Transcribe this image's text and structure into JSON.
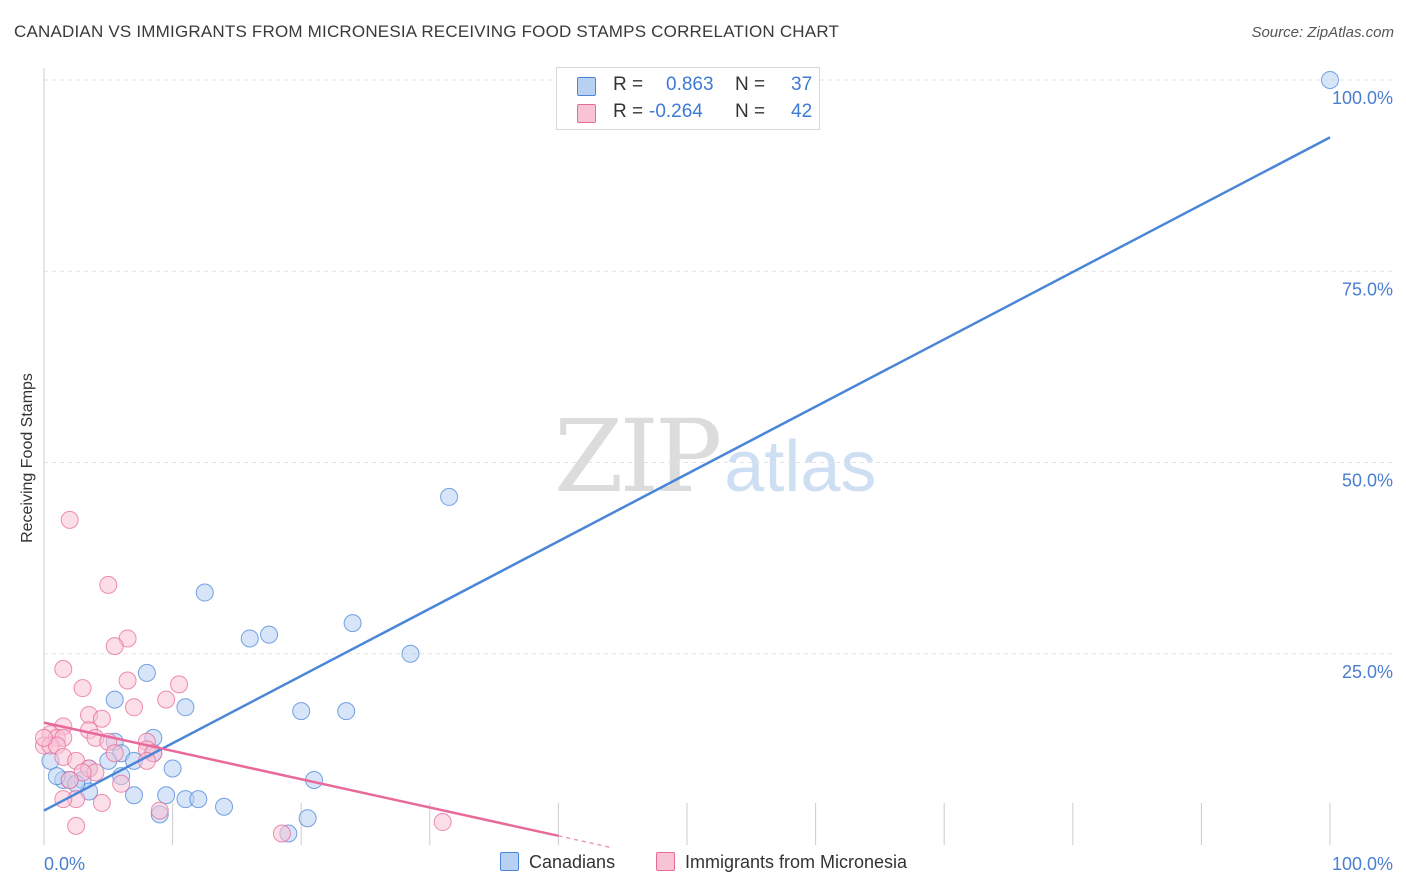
{
  "chart_data": {
    "type": "scatter",
    "title": "CANADIAN VS IMMIGRANTS FROM MICRONESIA RECEIVING FOOD STAMPS CORRELATION CHART",
    "source": "Source: ZipAtlas.com",
    "ylabel": "Receiving Food Stamps",
    "xlabel": "",
    "xlim": [
      0,
      100
    ],
    "ylim": [
      0,
      100
    ],
    "x_tick_labels": {
      "min": "0.0%",
      "max": "100.0%"
    },
    "y_ticks": [
      {
        "value": 25,
        "label": "25.0%"
      },
      {
        "value": 50,
        "label": "50.0%"
      },
      {
        "value": 75,
        "label": "75.0%"
      },
      {
        "value": 100,
        "label": "100.0%"
      }
    ],
    "grid": true,
    "legend_position": "top-center",
    "series": [
      {
        "name": "Canadians",
        "color": "#4a86d8",
        "fill": "#b8d0f2",
        "stats": {
          "r_label": "R =",
          "r": "0.863",
          "n_label": "N =",
          "n": "37"
        },
        "trend": {
          "x": [
            0,
            100
          ],
          "y": [
            4.5,
            92.5
          ],
          "style": "solid"
        },
        "points": [
          [
            100,
            100
          ],
          [
            31.5,
            45.5
          ],
          [
            12.5,
            33
          ],
          [
            24,
            29
          ],
          [
            17.5,
            27.5
          ],
          [
            16,
            27
          ],
          [
            28.5,
            25
          ],
          [
            8,
            22.5
          ],
          [
            5.5,
            19
          ],
          [
            11,
            18
          ],
          [
            20,
            17.5
          ],
          [
            23.5,
            17.5
          ],
          [
            8.5,
            14
          ],
          [
            5.5,
            13.5
          ],
          [
            6,
            12
          ],
          [
            8.5,
            12
          ],
          [
            5,
            11
          ],
          [
            7,
            11
          ],
          [
            10,
            10
          ],
          [
            3.5,
            10
          ],
          [
            6,
            9
          ],
          [
            21,
            8.5
          ],
          [
            1.5,
            8.5
          ],
          [
            2,
            8.5
          ],
          [
            3,
            8.5
          ],
          [
            3.5,
            7
          ],
          [
            7,
            6.5
          ],
          [
            9.5,
            6.5
          ],
          [
            11,
            6
          ],
          [
            12,
            6
          ],
          [
            14,
            5
          ],
          [
            9,
            4
          ],
          [
            20.5,
            3.5
          ],
          [
            19,
            1.5
          ],
          [
            0.5,
            11
          ],
          [
            1,
            9
          ],
          [
            2.5,
            8
          ]
        ]
      },
      {
        "name": "Immigrants from Micronesia",
        "color": "#e86a9a",
        "fill": "#f7c3d5",
        "stats": {
          "r_label": "R =",
          "r": "-0.264",
          "n_label": "N =",
          "n": "42"
        },
        "trend": {
          "x": [
            0,
            40
          ],
          "y": [
            16,
            1.2
          ],
          "style": "solid",
          "dash_x": [
            40,
            44
          ],
          "dash_y": [
            1.2,
            -0.3
          ]
        },
        "points": [
          [
            2,
            42.5
          ],
          [
            5,
            34
          ],
          [
            6.5,
            27
          ],
          [
            5.5,
            26
          ],
          [
            1.5,
            23
          ],
          [
            6.5,
            21.5
          ],
          [
            10.5,
            21
          ],
          [
            3,
            20.5
          ],
          [
            9.5,
            19
          ],
          [
            7,
            18
          ],
          [
            3.5,
            17
          ],
          [
            4.5,
            16.5
          ],
          [
            1.5,
            15.5
          ],
          [
            3.5,
            15
          ],
          [
            0.5,
            14.5
          ],
          [
            1,
            14
          ],
          [
            1.5,
            14
          ],
          [
            4,
            14
          ],
          [
            8,
            13.5
          ],
          [
            0,
            13
          ],
          [
            0.5,
            13
          ],
          [
            1,
            13
          ],
          [
            5,
            13.5
          ],
          [
            8,
            12.5
          ],
          [
            8.5,
            12
          ],
          [
            5.5,
            12
          ],
          [
            1.5,
            11.5
          ],
          [
            8,
            11
          ],
          [
            2.5,
            11
          ],
          [
            3.5,
            10
          ],
          [
            4,
            9.5
          ],
          [
            3,
            9.5
          ],
          [
            2,
            8.5
          ],
          [
            6,
            8
          ],
          [
            2.5,
            6
          ],
          [
            4.5,
            5.5
          ],
          [
            1.5,
            6
          ],
          [
            9,
            4.5
          ],
          [
            2.5,
            2.5
          ],
          [
            31,
            3
          ],
          [
            18.5,
            1.5
          ],
          [
            0,
            14
          ]
        ]
      }
    ]
  }
}
